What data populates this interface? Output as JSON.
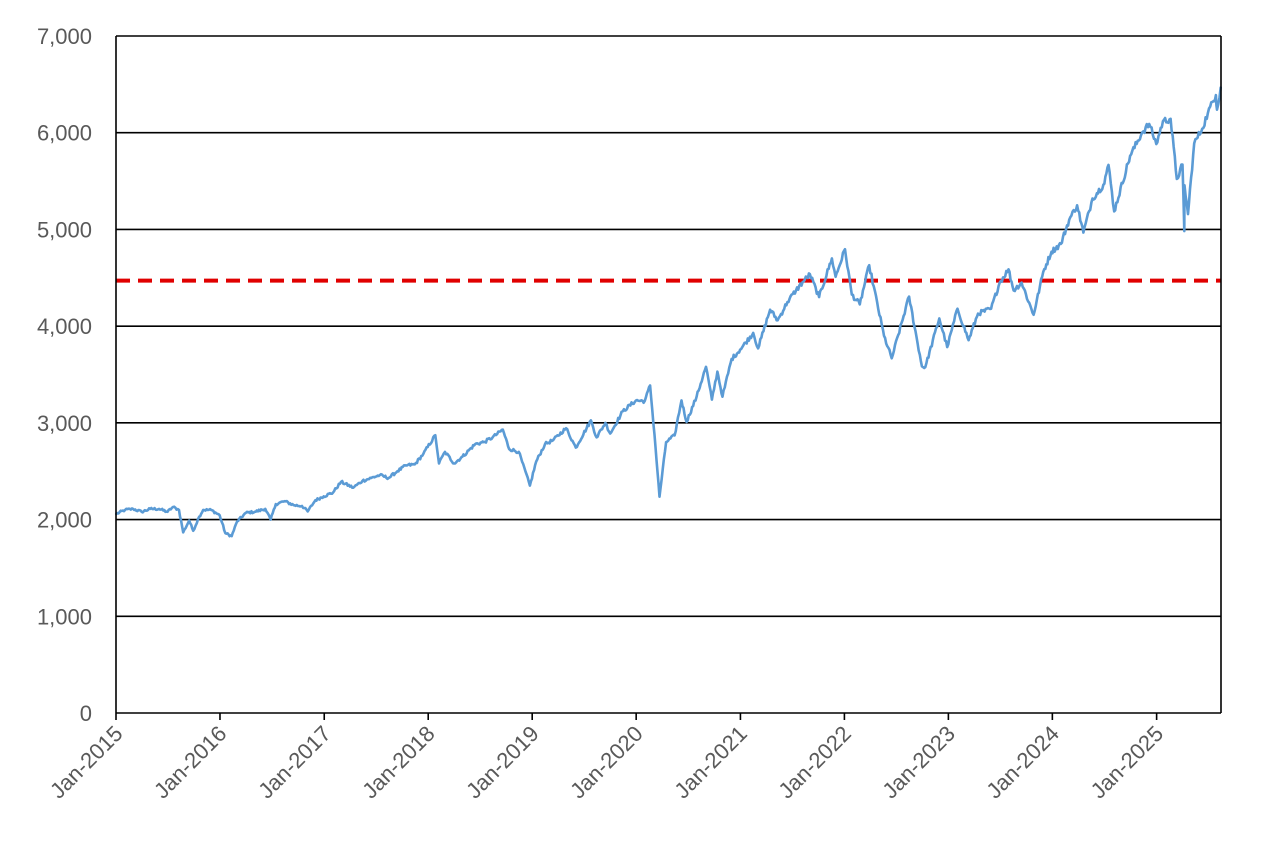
{
  "chart_data": {
    "type": "line",
    "title": "",
    "xlabel": "",
    "ylabel": "",
    "xlim": [
      "2015-01-01",
      "2025-08-15"
    ],
    "ylim": [
      0,
      7000
    ],
    "y_ticks": [
      0,
      1000,
      2000,
      3000,
      4000,
      5000,
      6000,
      7000
    ],
    "y_tick_labels": [
      "0",
      "1,000",
      "2,000",
      "3,000",
      "4,000",
      "5,000",
      "6,000",
      "7,000"
    ],
    "x_ticks": [
      "2015-01-01",
      "2016-01-01",
      "2017-01-01",
      "2018-01-01",
      "2019-01-01",
      "2020-01-01",
      "2021-01-01",
      "2022-01-01",
      "2023-01-01",
      "2024-01-01",
      "2025-01-01"
    ],
    "x_tick_labels": [
      "Jan-2015",
      "Jan-2016",
      "Jan-2017",
      "Jan-2018",
      "Jan-2019",
      "Jan-2020",
      "Jan-2021",
      "Jan-2022",
      "Jan-2023",
      "Jan-2024",
      "Jan-2025"
    ],
    "grid": "horizontal",
    "legend": "none",
    "series": [
      {
        "color": "#5b9bd5",
        "points": [
          [
            "2015-01-02",
            2058
          ],
          [
            "2015-02-02",
            2100
          ],
          [
            "2015-03-02",
            2110
          ],
          [
            "2015-04-01",
            2080
          ],
          [
            "2015-05-01",
            2110
          ],
          [
            "2015-06-01",
            2110
          ],
          [
            "2015-07-01",
            2080
          ],
          [
            "2015-07-20",
            2130
          ],
          [
            "2015-08-10",
            2100
          ],
          [
            "2015-08-25",
            1867
          ],
          [
            "2015-09-15",
            1990
          ],
          [
            "2015-09-29",
            1884
          ],
          [
            "2015-10-20",
            2030
          ],
          [
            "2015-11-03",
            2100
          ],
          [
            "2015-12-01",
            2100
          ],
          [
            "2015-12-31",
            2044
          ],
          [
            "2016-01-20",
            1859
          ],
          [
            "2016-02-11",
            1829
          ],
          [
            "2016-03-01",
            1980
          ],
          [
            "2016-04-01",
            2070
          ],
          [
            "2016-05-02",
            2080
          ],
          [
            "2016-06-08",
            2110
          ],
          [
            "2016-06-27",
            2000
          ],
          [
            "2016-07-15",
            2160
          ],
          [
            "2016-08-15",
            2190
          ],
          [
            "2016-09-15",
            2150
          ],
          [
            "2016-10-15",
            2140
          ],
          [
            "2016-11-04",
            2085
          ],
          [
            "2016-12-01",
            2200
          ],
          [
            "2016-12-30",
            2240
          ],
          [
            "2017-02-01",
            2280
          ],
          [
            "2017-03-01",
            2390
          ],
          [
            "2017-04-13",
            2330
          ],
          [
            "2017-05-15",
            2400
          ],
          [
            "2017-06-15",
            2430
          ],
          [
            "2017-07-15",
            2460
          ],
          [
            "2017-08-15",
            2430
          ],
          [
            "2017-09-15",
            2500
          ],
          [
            "2017-10-15",
            2560
          ],
          [
            "2017-11-15",
            2570
          ],
          [
            "2017-12-15",
            2680
          ],
          [
            "2018-01-26",
            2872
          ],
          [
            "2018-02-08",
            2581
          ],
          [
            "2018-03-01",
            2700
          ],
          [
            "2018-04-02",
            2580
          ],
          [
            "2018-05-01",
            2650
          ],
          [
            "2018-06-15",
            2780
          ],
          [
            "2018-07-15",
            2800
          ],
          [
            "2018-08-15",
            2850
          ],
          [
            "2018-09-20",
            2930
          ],
          [
            "2018-10-12",
            2730
          ],
          [
            "2018-11-15",
            2700
          ],
          [
            "2018-12-24",
            2351
          ],
          [
            "2019-01-15",
            2600
          ],
          [
            "2019-02-15",
            2780
          ],
          [
            "2019-03-15",
            2820
          ],
          [
            "2019-04-30",
            2945
          ],
          [
            "2019-06-03",
            2744
          ],
          [
            "2019-07-26",
            3025
          ],
          [
            "2019-08-15",
            2850
          ],
          [
            "2019-09-15",
            3000
          ],
          [
            "2019-10-02",
            2890
          ],
          [
            "2019-11-15",
            3120
          ],
          [
            "2019-12-31",
            3231
          ],
          [
            "2020-01-31",
            3225
          ],
          [
            "2020-02-19",
            3386
          ],
          [
            "2020-03-09",
            2750
          ],
          [
            "2020-03-23",
            2237
          ],
          [
            "2020-04-15",
            2800
          ],
          [
            "2020-05-15",
            2870
          ],
          [
            "2020-06-08",
            3232
          ],
          [
            "2020-06-26",
            3010
          ],
          [
            "2020-07-31",
            3270
          ],
          [
            "2020-09-02",
            3580
          ],
          [
            "2020-09-23",
            3240
          ],
          [
            "2020-10-12",
            3530
          ],
          [
            "2020-10-30",
            3270
          ],
          [
            "2020-12-01",
            3660
          ],
          [
            "2020-12-31",
            3756
          ],
          [
            "2021-02-15",
            3930
          ],
          [
            "2021-03-04",
            3770
          ],
          [
            "2021-04-15",
            4170
          ],
          [
            "2021-05-12",
            4060
          ],
          [
            "2021-06-15",
            4250
          ],
          [
            "2021-07-15",
            4370
          ],
          [
            "2021-08-15",
            4480
          ],
          [
            "2021-09-02",
            4537
          ],
          [
            "2021-10-04",
            4300
          ],
          [
            "2021-11-18",
            4700
          ],
          [
            "2021-12-01",
            4510
          ],
          [
            "2022-01-03",
            4796
          ],
          [
            "2022-01-27",
            4326
          ],
          [
            "2022-02-24",
            4225
          ],
          [
            "2022-03-29",
            4630
          ],
          [
            "2022-05-20",
            3900
          ],
          [
            "2022-06-16",
            3667
          ],
          [
            "2022-08-16",
            4305
          ],
          [
            "2022-09-30",
            3585
          ],
          [
            "2022-10-12",
            3577
          ],
          [
            "2022-11-30",
            4080
          ],
          [
            "2022-12-28",
            3783
          ],
          [
            "2023-02-02",
            4180
          ],
          [
            "2023-03-13",
            3855
          ],
          [
            "2023-04-15",
            4130
          ],
          [
            "2023-05-31",
            4180
          ],
          [
            "2023-06-30",
            4450
          ],
          [
            "2023-07-31",
            4588
          ],
          [
            "2023-08-18",
            4370
          ],
          [
            "2023-09-15",
            4450
          ],
          [
            "2023-10-27",
            4117
          ],
          [
            "2023-11-30",
            4560
          ],
          [
            "2023-12-29",
            4770
          ],
          [
            "2024-01-31",
            4850
          ],
          [
            "2024-02-29",
            5100
          ],
          [
            "2024-03-28",
            5250
          ],
          [
            "2024-04-19",
            4967
          ],
          [
            "2024-05-21",
            5320
          ],
          [
            "2024-06-28",
            5460
          ],
          [
            "2024-07-16",
            5667
          ],
          [
            "2024-08-05",
            5186
          ],
          [
            "2024-09-30",
            5760
          ],
          [
            "2024-11-11",
            6001
          ],
          [
            "2024-12-06",
            6090
          ],
          [
            "2024-12-31",
            5882
          ],
          [
            "2025-01-23",
            6118
          ],
          [
            "2025-02-19",
            6144
          ],
          [
            "2025-03-13",
            5521
          ],
          [
            "2025-04-02",
            5670
          ],
          [
            "2025-04-08",
            4983
          ],
          [
            "2025-04-09",
            5456
          ],
          [
            "2025-04-21",
            5158
          ],
          [
            "2025-05-13",
            5890
          ],
          [
            "2025-06-10",
            6040
          ],
          [
            "2025-06-30",
            6205
          ],
          [
            "2025-07-28",
            6389
          ],
          [
            "2025-08-01",
            6238
          ],
          [
            "2025-08-14",
            6468
          ]
        ]
      }
    ],
    "reference_lines": [
      {
        "y": 4470,
        "color": "#e00000",
        "style": "dashed"
      }
    ]
  }
}
